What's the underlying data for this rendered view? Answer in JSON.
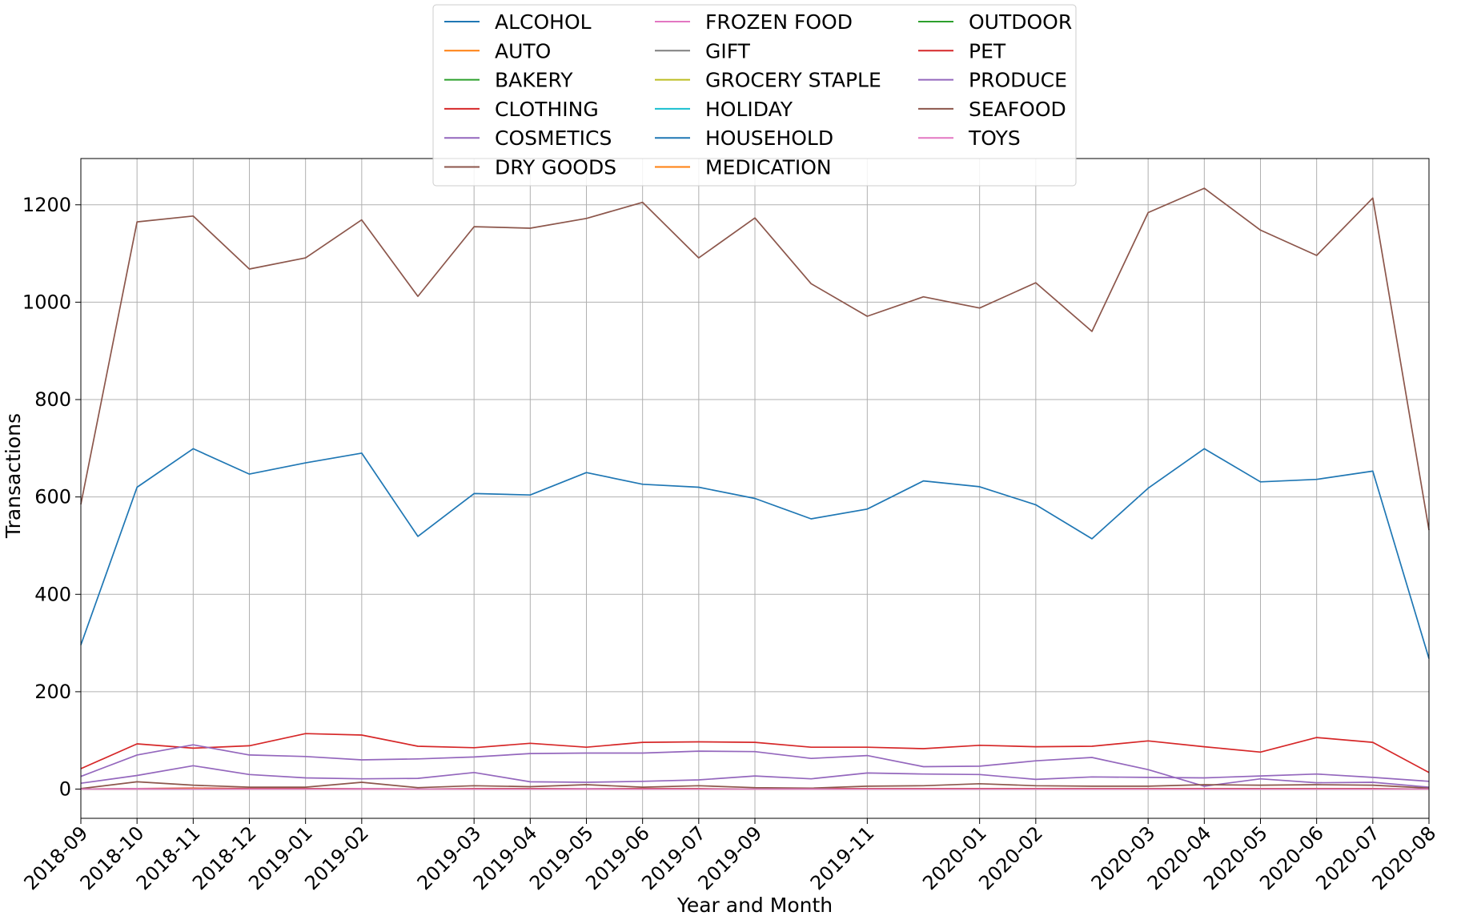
{
  "chart_data": {
    "type": "line",
    "title": "",
    "xlabel": "Year and Month",
    "ylabel": "Transactions",
    "ylim": [
      -60,
      1295
    ],
    "xlim": [
      0,
      24
    ],
    "yticks": [
      0,
      200,
      400,
      600,
      800,
      1000,
      1200
    ],
    "grid": true,
    "legend_placement": "upper center",
    "xticks": [
      {
        "pos": 0,
        "label": "2018-09"
      },
      {
        "pos": 1,
        "label": "2018-10"
      },
      {
        "pos": 2,
        "label": "2018-11"
      },
      {
        "pos": 3,
        "label": "2018-12"
      },
      {
        "pos": 4,
        "label": "2019-01"
      },
      {
        "pos": 5,
        "label": "2019-02"
      },
      {
        "pos": 7,
        "label": "2019-03"
      },
      {
        "pos": 8,
        "label": "2019-04"
      },
      {
        "pos": 9,
        "label": "2019-05"
      },
      {
        "pos": 10,
        "label": "2019-06"
      },
      {
        "pos": 11,
        "label": "2019-07"
      },
      {
        "pos": 12,
        "label": "2019-09"
      },
      {
        "pos": 14,
        "label": "2019-11"
      },
      {
        "pos": 16,
        "label": "2020-01"
      },
      {
        "pos": 17,
        "label": "2020-02"
      },
      {
        "pos": 19,
        "label": "2020-03"
      },
      {
        "pos": 20,
        "label": "2020-04"
      },
      {
        "pos": 21,
        "label": "2020-05"
      },
      {
        "pos": 22,
        "label": "2020-06"
      },
      {
        "pos": 23,
        "label": "2020-07"
      },
      {
        "pos": 24,
        "label": "2020-08"
      }
    ],
    "series": [
      {
        "name": "ALCOHOL",
        "color": "#1f77b4",
        "values": [
          0,
          0,
          0,
          0,
          0,
          0,
          0,
          0,
          0,
          0,
          0,
          0,
          0,
          0,
          0,
          0,
          0,
          0,
          0,
          0,
          0,
          0,
          0,
          0,
          0
        ]
      },
      {
        "name": "AUTO",
        "color": "#ff7f0e",
        "values": [
          0,
          0,
          0,
          0,
          0,
          0,
          0,
          0,
          0,
          0,
          0,
          0,
          0,
          0,
          0,
          0,
          0,
          0,
          0,
          0,
          0,
          0,
          0,
          0,
          0
        ]
      },
      {
        "name": "BAKERY",
        "color": "#2ca02c",
        "values": [
          0,
          0,
          1,
          0,
          0,
          0,
          0,
          0,
          0,
          0,
          0,
          0,
          0,
          0,
          0,
          0,
          0,
          0,
          0,
          0,
          0,
          0,
          0,
          0,
          0
        ]
      },
      {
        "name": "CLOTHING",
        "color": "#d62728",
        "values": [
          0,
          1,
          2,
          1,
          1,
          1,
          0,
          1,
          1,
          1,
          1,
          1,
          0,
          1,
          1,
          1,
          1,
          1,
          1,
          1,
          1,
          1,
          1,
          1,
          0
        ]
      },
      {
        "name": "COSMETICS",
        "color": "#9467bd",
        "values": [
          12,
          28,
          48,
          30,
          23,
          21,
          22,
          34,
          15,
          14,
          16,
          19,
          27,
          21,
          33,
          31,
          30,
          20,
          25,
          24,
          23,
          27,
          31,
          24,
          16
        ]
      },
      {
        "name": "DRY GOODS",
        "color": "#8c564b",
        "values": [
          585,
          1165,
          1177,
          1068,
          1091,
          1169,
          1012,
          1155,
          1152,
          1172,
          1205,
          1091,
          1173,
          1038,
          971,
          1011,
          988,
          1040,
          940,
          1184,
          1234,
          1148,
          1096,
          1214,
          532
        ]
      },
      {
        "name": "FROZEN FOOD",
        "color": "#e377c2",
        "values": [
          0,
          1,
          0,
          0,
          0,
          1,
          0,
          0,
          0,
          1,
          0,
          0,
          0,
          0,
          0,
          0,
          0,
          0,
          0,
          0,
          0,
          0,
          0,
          0,
          0
        ]
      },
      {
        "name": "GIFT",
        "color": "#7f7f7f",
        "values": [
          0,
          0,
          0,
          0,
          0,
          0,
          0,
          0,
          0,
          0,
          0,
          0,
          0,
          0,
          0,
          0,
          0,
          0,
          0,
          0,
          0,
          0,
          0,
          0,
          0
        ]
      },
      {
        "name": "GROCERY STAPLE",
        "color": "#bcbd22",
        "values": [
          0,
          0,
          0,
          0,
          0,
          0,
          0,
          0,
          0,
          0,
          0,
          0,
          0,
          0,
          0,
          0,
          0,
          0,
          0,
          0,
          0,
          0,
          0,
          0,
          0
        ]
      },
      {
        "name": "HOLIDAY",
        "color": "#17becf",
        "values": [
          0,
          0,
          0,
          0,
          0,
          0,
          0,
          0,
          0,
          0,
          0,
          0,
          0,
          0,
          0,
          0,
          0,
          0,
          0,
          0,
          0,
          0,
          0,
          0,
          0
        ]
      },
      {
        "name": "HOUSEHOLD",
        "color": "#1f77b4",
        "values": [
          296,
          620,
          699,
          647,
          670,
          690,
          519,
          607,
          604,
          650,
          626,
          620,
          597,
          555,
          575,
          633,
          621,
          584,
          514,
          618,
          699,
          631,
          636,
          653,
          268
        ]
      },
      {
        "name": "MEDICATION",
        "color": "#ff7f0e",
        "values": [
          0,
          0,
          1,
          0,
          0,
          0,
          0,
          0,
          0,
          0,
          0,
          0,
          0,
          0,
          0,
          0,
          0,
          0,
          0,
          0,
          0,
          0,
          0,
          0,
          0
        ]
      },
      {
        "name": "OUTDOOR",
        "color": "#2ca02c",
        "values": [
          0,
          0,
          0,
          0,
          0,
          0,
          0,
          0,
          0,
          0,
          0,
          0,
          0,
          0,
          0,
          0,
          0,
          0,
          0,
          0,
          0,
          0,
          0,
          0,
          0
        ]
      },
      {
        "name": "PET",
        "color": "#d62728",
        "values": [
          42,
          93,
          84,
          89,
          114,
          111,
          88,
          85,
          94,
          86,
          96,
          97,
          96,
          86,
          86,
          83,
          90,
          87,
          88,
          99,
          87,
          76,
          106,
          96,
          34
        ]
      },
      {
        "name": "PRODUCE",
        "color": "#9467bd",
        "values": [
          26,
          70,
          91,
          70,
          67,
          60,
          62,
          66,
          73,
          74,
          74,
          78,
          77,
          63,
          69,
          46,
          47,
          58,
          65,
          40,
          6,
          21,
          13,
          14,
          4
        ]
      },
      {
        "name": "SEAFOOD",
        "color": "#8c564b",
        "values": [
          1,
          15,
          8,
          4,
          4,
          14,
          3,
          7,
          5,
          9,
          4,
          7,
          3,
          2,
          6,
          7,
          11,
          7,
          6,
          6,
          9,
          8,
          9,
          8,
          2
        ]
      },
      {
        "name": "TOYS",
        "color": "#e377c2",
        "values": [
          0,
          0,
          0,
          0,
          0,
          0,
          0,
          0,
          0,
          0,
          0,
          0,
          0,
          0,
          0,
          0,
          0,
          0,
          0,
          0,
          0,
          0,
          0,
          0,
          0
        ]
      }
    ]
  }
}
